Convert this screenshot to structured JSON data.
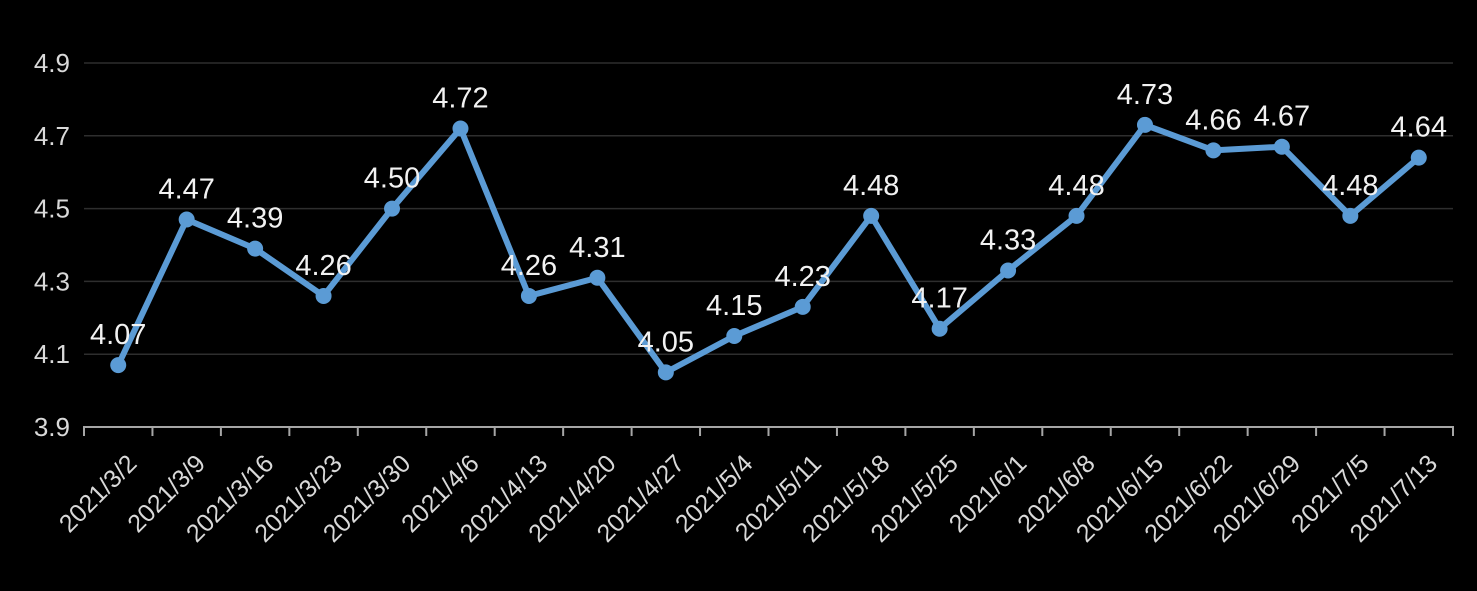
{
  "chart_data": {
    "type": "line",
    "title": "",
    "xlabel": "",
    "ylabel": "",
    "categories": [
      "2021/3/2",
      "2021/3/9",
      "2021/3/16",
      "2021/3/23",
      "2021/3/30",
      "2021/4/6",
      "2021/4/13",
      "2021/4/20",
      "2021/4/27",
      "2021/5/4",
      "2021/5/11",
      "2021/5/18",
      "2021/5/25",
      "2021/6/1",
      "2021/6/8",
      "2021/6/15",
      "2021/6/22",
      "2021/6/29",
      "2021/7/5",
      "2021/7/13"
    ],
    "series": [
      {
        "name": "value-series",
        "values": [
          4.07,
          4.47,
          4.39,
          4.26,
          4.5,
          4.72,
          4.26,
          4.31,
          4.05,
          4.15,
          4.23,
          4.48,
          4.17,
          4.33,
          4.48,
          4.73,
          4.66,
          4.67,
          4.48,
          4.64
        ],
        "data_labels": [
          "4.07",
          "4.47",
          "4.39",
          "4.26",
          "4.50",
          "4.72",
          "4.26",
          "4.31",
          "4.05",
          "4.15",
          "4.23",
          "4.48",
          "4.17",
          "4.33",
          "4.48",
          "4.73",
          "4.66",
          "4.67",
          "4.48",
          "4.64"
        ],
        "color": "#5B9BD5"
      }
    ],
    "ylim": [
      3.9,
      4.9
    ],
    "yticks": [
      3.9,
      4.1,
      4.3,
      4.5,
      4.7,
      4.9
    ],
    "ytick_labels": [
      "3.9",
      "4.1",
      "4.3",
      "4.5",
      "4.7",
      "4.9"
    ],
    "grid": true,
    "legend_position": "none",
    "x_label_rotation_deg": 45,
    "colors": {
      "background": "#000000",
      "line": "#5B9BD5",
      "marker": "#5B9BD5",
      "gridline": "#2E2E2E",
      "axis_line": "#A6A6A6",
      "axis_tick_label": "#D9D9D9",
      "data_label": "#F2F2F2"
    }
  }
}
